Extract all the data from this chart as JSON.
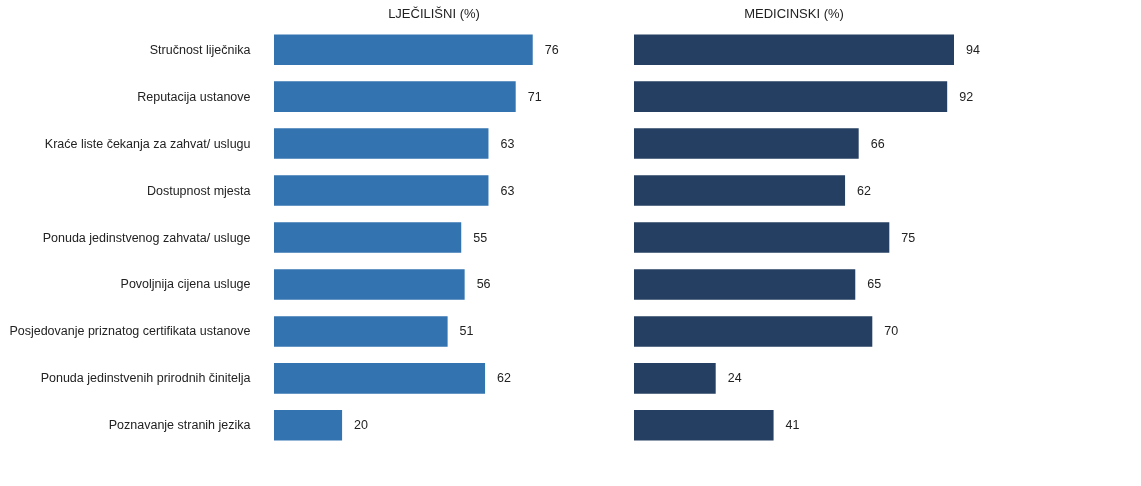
{
  "chart_data": [
    {
      "type": "bar",
      "orientation": "horizontal",
      "title": "LJEČILIŠNI (%)",
      "categories": [
        "Stručnost liječnika",
        "Reputacija ustanove",
        "Kraće liste čekanja za zahvat/ uslugu",
        "Dostupnost mjesta",
        "Ponuda jedinstvenog zahvata/ usluge",
        "Povoljnija cijena usluge",
        "Posjedovanje priznatog certifikata ustanove",
        "Ponuda jedinstvenih prirodnih činitelja",
        "Poznavanje stranih jezika"
      ],
      "values": [
        76,
        71,
        63,
        63,
        55,
        56,
        51,
        62,
        20
      ],
      "color": "#3374b0",
      "data_labels": true,
      "tick_labels": "y"
    },
    {
      "type": "bar",
      "orientation": "horizontal",
      "title": "MEDICINSKI (%)",
      "categories": [
        null,
        null,
        null,
        null,
        null,
        null,
        null,
        null,
        null
      ],
      "values": [
        94,
        92,
        66,
        62,
        75,
        65,
        70,
        24,
        41
      ],
      "color": "#243f62",
      "data_labels": true,
      "tick_labels": false
    }
  ]
}
